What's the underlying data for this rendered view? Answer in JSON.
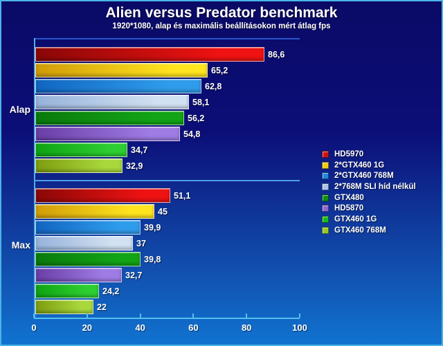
{
  "title": "Alien versus Predator benchmark",
  "subtitle": "1920*1080, alap és maximális beállításokon mért átlag fps",
  "chart_data": {
    "type": "bar",
    "orientation": "horizontal",
    "title": "Alien versus Predator benchmark",
    "subtitle": "1920*1080, alap és maximális beállításokon mért átlag fps",
    "xlabel": "",
    "ylabel": "",
    "xlim": [
      0,
      100
    ],
    "xticks": [
      0,
      20,
      40,
      60,
      80,
      100
    ],
    "xtick_labels": [
      "0",
      "20",
      "40",
      "60",
      "80",
      "100"
    ],
    "grid": false,
    "legend_position": "right",
    "series_names": [
      "HD5970",
      "2*GTX460 1G",
      "2*GTX460 768M",
      "2*768M SLI híd nélkül",
      "GTX480",
      "HD5870",
      "GTX460 1G",
      "GTX460 768M"
    ],
    "series_colors": [
      {
        "dark": "#8a0707",
        "bright": "#ee1212",
        "swatch": "#cc1414"
      },
      {
        "dark": "#d09b08",
        "bright": "#ffe41e",
        "swatch": "#f2cc12"
      },
      {
        "dark": "#1165c0",
        "bright": "#2f9ceb",
        "swatch": "#2487dd"
      },
      {
        "dark": "#96b2da",
        "bright": "#d2e1f2",
        "swatch": "#a9c3e6"
      },
      {
        "dark": "#0a7a0c",
        "bright": "#12a416",
        "swatch": "#0c8f10"
      },
      {
        "dark": "#6a3da6",
        "bright": "#9f7ce4",
        "swatch": "#9168cf"
      },
      {
        "dark": "#0fa313",
        "bright": "#2dce31",
        "swatch": "#1bbb1e"
      },
      {
        "dark": "#7e9c10",
        "bright": "#a9d83c",
        "swatch": "#99cc22"
      }
    ],
    "groups": [
      {
        "label": "Alap",
        "values": [
          86.6,
          65.2,
          62.8,
          58.1,
          56.2,
          54.8,
          34.7,
          32.9
        ],
        "value_labels": [
          "86,6",
          "65,2",
          "62,8",
          "58,1",
          "56,2",
          "54,8",
          "34,7",
          "32,9"
        ]
      },
      {
        "label": "Max",
        "values": [
          51.1,
          45,
          39.9,
          37,
          39.8,
          32.7,
          24.2,
          22
        ],
        "value_labels": [
          "51,1",
          "45",
          "39,9",
          "37",
          "39,8",
          "32,7",
          "24,2",
          "22"
        ]
      }
    ]
  }
}
